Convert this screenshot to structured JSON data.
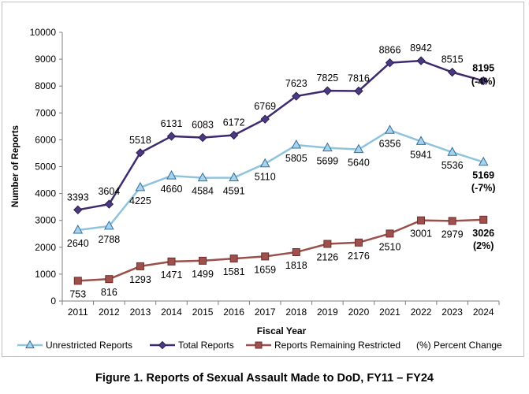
{
  "chart_data": {
    "type": "line",
    "title": "",
    "xlabel": "Fiscal Year",
    "ylabel": "Number of Reports",
    "ylim": [
      0,
      10000
    ],
    "yticks": [
      "0",
      "1000",
      "2000",
      "3000",
      "4000",
      "5000",
      "6000",
      "7000",
      "8000",
      "9000",
      "10000"
    ],
    "categories": [
      "2011",
      "2012",
      "2013",
      "2014",
      "2015",
      "2016",
      "2017",
      "2018",
      "2019",
      "2020",
      "2021",
      "2022",
      "2023",
      "2024"
    ],
    "series": [
      {
        "name": "Unrestricted Reports",
        "color": "#8fc3de",
        "marker": "triangle",
        "marker_fill": "#a9d3ea",
        "marker_stroke": "#2f6f9f",
        "label_position": "below",
        "values": [
          2640,
          2788,
          4225,
          4660,
          4584,
          4591,
          5110,
          5805,
          5699,
          5640,
          6356,
          5941,
          5536,
          5169
        ],
        "final_change": "(-7%)"
      },
      {
        "name": "Total Reports",
        "color": "#3d2b6e",
        "marker": "diamond",
        "marker_fill": "#4b3a80",
        "marker_stroke": "#2a1d52",
        "label_position": "above",
        "values": [
          3393,
          3604,
          5518,
          6131,
          6083,
          6172,
          6769,
          7623,
          7825,
          7816,
          8866,
          8942,
          8515,
          8195
        ],
        "final_change": "(-4%)"
      },
      {
        "name": "Reports Remaining Restricted",
        "color": "#9a4f4a",
        "marker": "square",
        "marker_fill": "#a0504c",
        "marker_stroke": "#6e2f2c",
        "label_position": "below",
        "values": [
          753,
          816,
          1293,
          1471,
          1499,
          1581,
          1659,
          1818,
          2126,
          2176,
          2510,
          3001,
          2979,
          3026
        ],
        "final_change": "(2%)"
      }
    ],
    "legend": {
      "placement": "bottom",
      "items": [
        "Unrestricted Reports",
        "Total Reports",
        "Reports Remaining Restricted"
      ],
      "note": "(%) Percent Change"
    },
    "caption": "Figure 1.  Reports of Sexual Assault Made to DoD, FY11 – FY24"
  },
  "colors": {
    "axis": "#7f7f7f",
    "text": "#000000"
  }
}
